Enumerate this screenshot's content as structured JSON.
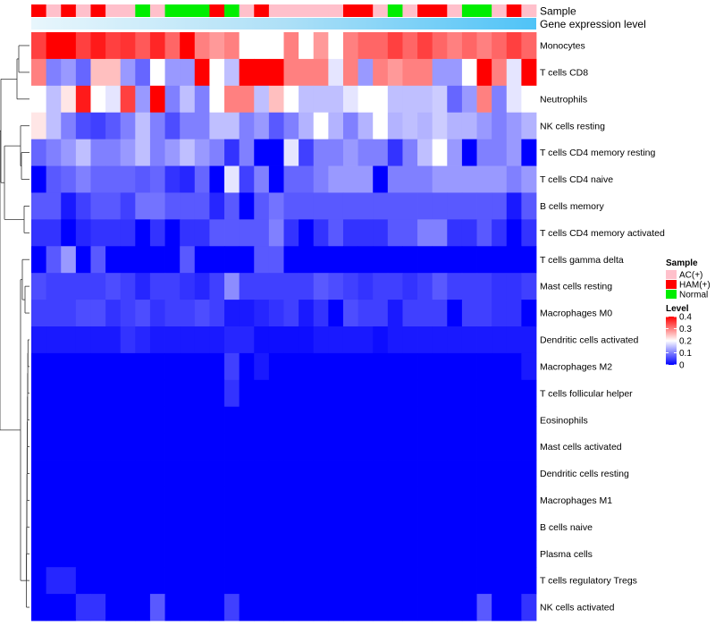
{
  "chart_data": {
    "type": "heatmap",
    "title": "",
    "row_labels": [
      "Monocytes",
      "T cells CD8",
      "Neutrophils",
      "NK cells resting",
      "T cells CD4 memory resting",
      "T cells CD4 naive",
      "B cells memory",
      "T cells CD4 memory activated",
      "T cells gamma delta",
      "Mast cells resting",
      "Macrophages M0",
      "Dendritic cells activated",
      "Macrophages M2",
      "T cells follicular helper",
      "Eosinophils",
      "Mast cells activated",
      "Dendritic cells resting",
      "Macrophages M1",
      "B cells naive",
      "Plasma cells",
      "T cells regulatory  Tregs",
      "NK cells activated"
    ],
    "annotation_tracks": [
      "Sample",
      "Gene expression level"
    ],
    "sample_groups": [
      "HAM(+)",
      "AC(+)",
      "HAM(+)",
      "AC(+)",
      "HAM(+)",
      "AC(+)",
      "AC(+)",
      "Normal",
      "AC(+)",
      "Normal",
      "Normal",
      "Normal",
      "HAM(+)",
      "Normal",
      "AC(+)",
      "HAM(+)",
      "AC(+)",
      "AC(+)",
      "AC(+)",
      "AC(+)",
      "AC(+)",
      "HAM(+)",
      "HAM(+)",
      "AC(+)",
      "Normal",
      "AC(+)",
      "HAM(+)",
      "HAM(+)",
      "AC(+)",
      "Normal",
      "Normal",
      "AC(+)",
      "HAM(+)",
      "AC(+)"
    ],
    "values": [
      [
        0.35,
        0.4,
        0.4,
        0.35,
        0.38,
        0.35,
        0.36,
        0.33,
        0.37,
        0.32,
        0.4,
        0.3,
        0.28,
        0.3,
        0.2,
        0.2,
        0.2,
        0.3,
        0.2,
        0.28,
        0.2,
        0.3,
        0.32,
        0.32,
        0.35,
        0.32,
        0.35,
        0.32,
        0.3,
        0.32,
        0.3,
        0.32,
        0.35,
        0.32
      ],
      [
        0.3,
        0.1,
        0.12,
        0.08,
        0.25,
        0.25,
        0.12,
        0.08,
        0.2,
        0.12,
        0.12,
        0.4,
        0.2,
        0.15,
        0.4,
        0.4,
        0.4,
        0.3,
        0.3,
        0.3,
        0.18,
        0.3,
        0.12,
        0.3,
        0.28,
        0.3,
        0.3,
        0.12,
        0.12,
        0.2,
        0.4,
        0.3,
        0.18,
        0.4
      ],
      [
        0.2,
        0.15,
        0.22,
        0.38,
        0.2,
        0.18,
        0.35,
        0.12,
        0.4,
        0.1,
        0.15,
        0.1,
        0.2,
        0.3,
        0.3,
        0.15,
        0.25,
        0.2,
        0.15,
        0.15,
        0.15,
        0.18,
        0.2,
        0.2,
        0.15,
        0.15,
        0.15,
        0.16,
        0.08,
        0.12,
        0.3,
        0.1,
        0.18,
        0.2
      ],
      [
        0.22,
        0.15,
        0.1,
        0.06,
        0.05,
        0.07,
        0.1,
        0.15,
        0.1,
        0.06,
        0.1,
        0.1,
        0.15,
        0.15,
        0.1,
        0.12,
        0.07,
        0.1,
        0.14,
        0.2,
        0.14,
        0.1,
        0.14,
        0.2,
        0.14,
        0.15,
        0.14,
        0.16,
        0.14,
        0.14,
        0.12,
        0.1,
        0.12,
        0.14
      ],
      [
        0.08,
        0.1,
        0.12,
        0.15,
        0.1,
        0.1,
        0.12,
        0.15,
        0.1,
        0.12,
        0.15,
        0.12,
        0.1,
        0.04,
        0.1,
        0.0,
        0.0,
        0.18,
        0.05,
        0.1,
        0.1,
        0.12,
        0.1,
        0.1,
        0.04,
        0.1,
        0.15,
        0.2,
        0.12,
        0.0,
        0.1,
        0.1,
        0.12,
        0.0
      ],
      [
        0.0,
        0.07,
        0.08,
        0.1,
        0.08,
        0.08,
        0.08,
        0.07,
        0.08,
        0.04,
        0.03,
        0.08,
        0.0,
        0.18,
        0.05,
        0.1,
        0.0,
        0.08,
        0.08,
        0.1,
        0.12,
        0.12,
        0.12,
        0.0,
        0.1,
        0.1,
        0.1,
        0.12,
        0.12,
        0.12,
        0.12,
        0.12,
        0.1,
        0.12
      ],
      [
        0.07,
        0.07,
        0.02,
        0.05,
        0.07,
        0.07,
        0.05,
        0.09,
        0.09,
        0.07,
        0.07,
        0.07,
        0.03,
        0.07,
        0.0,
        0.07,
        0.09,
        0.07,
        0.07,
        0.07,
        0.07,
        0.07,
        0.07,
        0.07,
        0.07,
        0.07,
        0.07,
        0.07,
        0.07,
        0.07,
        0.07,
        0.07,
        0.02,
        0.07
      ],
      [
        0.04,
        0.04,
        0.0,
        0.03,
        0.04,
        0.04,
        0.04,
        0.0,
        0.04,
        0.0,
        0.04,
        0.04,
        0.07,
        0.07,
        0.07,
        0.07,
        0.1,
        0.04,
        0.0,
        0.04,
        0.07,
        0.04,
        0.04,
        0.04,
        0.07,
        0.07,
        0.1,
        0.1,
        0.04,
        0.04,
        0.07,
        0.04,
        0.0,
        0.04
      ],
      [
        0.0,
        0.07,
        0.12,
        0.0,
        0.07,
        0.0,
        0.0,
        0.0,
        0.0,
        0.0,
        0.07,
        0.0,
        0.0,
        0.0,
        0.0,
        0.07,
        0.07,
        0.0,
        0.0,
        0.0,
        0.0,
        0.0,
        0.0,
        0.0,
        0.0,
        0.0,
        0.0,
        0.0,
        0.0,
        0.0,
        0.0,
        0.0,
        0.0,
        0.0
      ],
      [
        0.06,
        0.05,
        0.05,
        0.05,
        0.05,
        0.06,
        0.05,
        0.03,
        0.05,
        0.05,
        0.04,
        0.03,
        0.05,
        0.11,
        0.05,
        0.05,
        0.05,
        0.05,
        0.05,
        0.07,
        0.06,
        0.05,
        0.04,
        0.05,
        0.05,
        0.04,
        0.05,
        0.07,
        0.05,
        0.05,
        0.05,
        0.04,
        0.04,
        0.05
      ],
      [
        0.05,
        0.05,
        0.05,
        0.06,
        0.06,
        0.04,
        0.05,
        0.06,
        0.04,
        0.05,
        0.05,
        0.06,
        0.05,
        0.02,
        0.02,
        0.03,
        0.04,
        0.05,
        0.02,
        0.04,
        0.0,
        0.06,
        0.05,
        0.05,
        0.02,
        0.05,
        0.05,
        0.05,
        0.0,
        0.05,
        0.05,
        0.04,
        0.04,
        0.0
      ],
      [
        0.02,
        0.02,
        0.02,
        0.02,
        0.02,
        0.02,
        0.04,
        0.03,
        0.02,
        0.02,
        0.02,
        0.02,
        0.02,
        0.03,
        0.03,
        0.01,
        0.01,
        0.01,
        0.01,
        0.02,
        0.02,
        0.02,
        0.02,
        0.01,
        0.02,
        0.02,
        0.02,
        0.02,
        0.02,
        0.02,
        0.02,
        0.02,
        0.02,
        0.02
      ],
      [
        0.0,
        0.0,
        0.0,
        0.0,
        0.0,
        0.0,
        0.0,
        0.0,
        0.0,
        0.0,
        0.0,
        0.0,
        0.0,
        0.05,
        0.0,
        0.02,
        0.0,
        0.0,
        0.0,
        0.0,
        0.0,
        0.0,
        0.0,
        0.0,
        0.0,
        0.0,
        0.0,
        0.0,
        0.0,
        0.0,
        0.0,
        0.0,
        0.0,
        0.02
      ],
      [
        0.0,
        0.0,
        0.0,
        0.0,
        0.0,
        0.0,
        0.0,
        0.0,
        0.0,
        0.0,
        0.0,
        0.0,
        0.0,
        0.04,
        0.0,
        0.0,
        0.0,
        0.0,
        0.0,
        0.0,
        0.0,
        0.0,
        0.0,
        0.0,
        0.0,
        0.0,
        0.0,
        0.0,
        0.0,
        0.0,
        0.0,
        0.0,
        0.0,
        0.0
      ],
      [
        0.0,
        0.0,
        0.0,
        0.0,
        0.0,
        0.0,
        0.0,
        0.0,
        0.0,
        0.0,
        0.0,
        0.0,
        0.0,
        0.0,
        0.0,
        0.0,
        0.0,
        0.0,
        0.0,
        0.0,
        0.0,
        0.0,
        0.0,
        0.0,
        0.0,
        0.0,
        0.0,
        0.0,
        0.0,
        0.0,
        0.0,
        0.0,
        0.0,
        0.0
      ],
      [
        0.0,
        0.0,
        0.0,
        0.0,
        0.0,
        0.0,
        0.0,
        0.0,
        0.0,
        0.0,
        0.0,
        0.0,
        0.0,
        0.0,
        0.0,
        0.0,
        0.0,
        0.0,
        0.0,
        0.0,
        0.0,
        0.0,
        0.0,
        0.0,
        0.0,
        0.0,
        0.0,
        0.0,
        0.0,
        0.0,
        0.0,
        0.0,
        0.0,
        0.0
      ],
      [
        0.0,
        0.0,
        0.0,
        0.0,
        0.0,
        0.0,
        0.0,
        0.0,
        0.0,
        0.0,
        0.0,
        0.0,
        0.0,
        0.0,
        0.0,
        0.0,
        0.0,
        0.0,
        0.0,
        0.0,
        0.0,
        0.0,
        0.0,
        0.0,
        0.0,
        0.0,
        0.0,
        0.0,
        0.0,
        0.0,
        0.0,
        0.0,
        0.0,
        0.0
      ],
      [
        0.0,
        0.0,
        0.0,
        0.0,
        0.0,
        0.0,
        0.0,
        0.0,
        0.0,
        0.0,
        0.0,
        0.0,
        0.0,
        0.0,
        0.0,
        0.0,
        0.0,
        0.0,
        0.0,
        0.0,
        0.0,
        0.0,
        0.0,
        0.0,
        0.0,
        0.0,
        0.0,
        0.0,
        0.0,
        0.0,
        0.0,
        0.0,
        0.0,
        0.0
      ],
      [
        0.0,
        0.0,
        0.0,
        0.0,
        0.0,
        0.0,
        0.0,
        0.0,
        0.0,
        0.0,
        0.0,
        0.0,
        0.0,
        0.0,
        0.0,
        0.0,
        0.0,
        0.0,
        0.0,
        0.0,
        0.0,
        0.0,
        0.0,
        0.0,
        0.0,
        0.0,
        0.0,
        0.0,
        0.0,
        0.0,
        0.0,
        0.0,
        0.0,
        0.0
      ],
      [
        0.0,
        0.0,
        0.0,
        0.0,
        0.0,
        0.0,
        0.0,
        0.0,
        0.0,
        0.0,
        0.0,
        0.0,
        0.0,
        0.0,
        0.0,
        0.0,
        0.0,
        0.0,
        0.0,
        0.0,
        0.0,
        0.0,
        0.0,
        0.0,
        0.0,
        0.0,
        0.0,
        0.0,
        0.0,
        0.0,
        0.0,
        0.0,
        0.0,
        0.0
      ],
      [
        0.0,
        0.03,
        0.03,
        0.0,
        0.0,
        0.0,
        0.0,
        0.0,
        0.0,
        0.0,
        0.0,
        0.0,
        0.0,
        0.0,
        0.0,
        0.0,
        0.0,
        0.0,
        0.0,
        0.0,
        0.0,
        0.0,
        0.0,
        0.0,
        0.0,
        0.0,
        0.0,
        0.0,
        0.0,
        0.0,
        0.0,
        0.0,
        0.0,
        0.0
      ],
      [
        0.0,
        0.0,
        0.0,
        0.04,
        0.04,
        0.0,
        0.0,
        0.0,
        0.07,
        0.0,
        0.0,
        0.0,
        0.0,
        0.05,
        0.0,
        0.0,
        0.0,
        0.0,
        0.0,
        0.0,
        0.0,
        0.0,
        0.0,
        0.0,
        0.0,
        0.0,
        0.0,
        0.0,
        0.0,
        0.0,
        0.07,
        0.0,
        0.0,
        0.04
      ]
    ],
    "legend": {
      "sample_title": "Sample",
      "sample_entries": [
        {
          "label": "AC(+)",
          "color": "#ffc0cb"
        },
        {
          "label": "HAM(+)",
          "color": "#ff0000"
        },
        {
          "label": "Normal",
          "color": "#00ee00"
        }
      ],
      "level_title": "Level",
      "level_ticks": [
        "0.4",
        "0.3",
        "0.2",
        "0.1",
        "0"
      ],
      "level_range": [
        0,
        0.4
      ],
      "placement": "right"
    },
    "color_scale": {
      "low": "#0000ff",
      "mid": "#ffffff",
      "high": "#ff0000",
      "midpoint": 0.2
    },
    "expression_track_gradient": [
      "#e8f6fc",
      "#aee0f7",
      "#4fc3f7"
    ]
  }
}
